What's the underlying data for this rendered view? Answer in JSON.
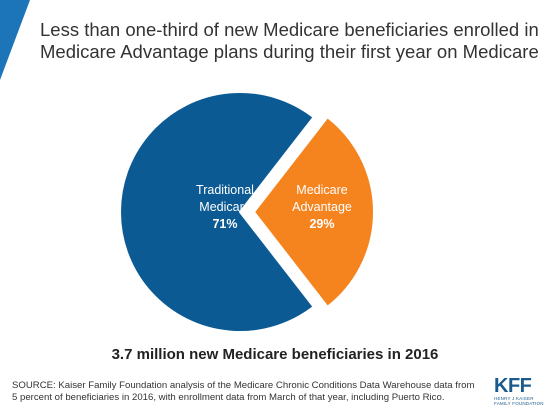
{
  "title": "Less than one-third of new Medicare beneficiaries enrolled in Medicare Advantage plans during their first year on Medicare",
  "subtitle": "3.7 million new Medicare beneficiaries in 2016",
  "source": "SOURCE: Kaiser Family Foundation analysis of the Medicare Chronic Conditions Data Warehouse data from 5 percent of beneficiaries in 2016, with enrollment data from March of that year, including Puerto Rico.",
  "logo": {
    "text": "KFF",
    "subtext": "HENRY J KAISER FAMILY FOUNDATION"
  },
  "colors": {
    "traditional": "#0b5a93",
    "advantage": "#f5841f",
    "stripe": "#1d75b9"
  },
  "chart_data": {
    "type": "pie",
    "slices": [
      {
        "label_lines": [
          "Traditional",
          "Medicare"
        ],
        "value": 71,
        "value_label": "71%",
        "color": "#0b5a93"
      },
      {
        "label_lines": [
          "Medicare",
          "Advantage"
        ],
        "value": 29,
        "value_label": "29%",
        "color": "#f5841f",
        "exploded": true
      }
    ]
  }
}
